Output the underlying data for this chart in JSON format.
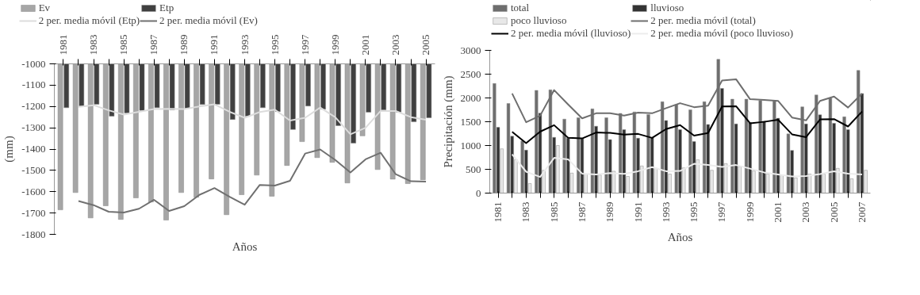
{
  "chart_data": [
    {
      "type": "bar",
      "xlabel": "Años",
      "ylabel": "(mm)",
      "legend": "top",
      "grid": false,
      "categories": [
        "1981",
        null,
        "1983",
        null,
        "1985",
        null,
        "1987",
        null,
        "1989",
        null,
        "1991",
        null,
        "1993",
        null,
        "1995",
        null,
        "1997",
        null,
        "1999",
        null,
        "2001",
        null,
        "2003",
        null,
        "2005"
      ],
      "ylim": [
        -1800,
        -1000
      ],
      "yticks": [
        -1800,
        -1700,
        -1600,
        -1500,
        -1400,
        -1300,
        -1200,
        -1100,
        -1000
      ],
      "series": [
        {
          "name": "Ev",
          "color": "#a6a6a6",
          "values": [
            -1685,
            -1604,
            -1723,
            -1666,
            -1730,
            -1629,
            -1648,
            -1733,
            -1604,
            -1626,
            -1540,
            -1708,
            -1614,
            -1522,
            -1621,
            -1477,
            -1365,
            -1440,
            -1462,
            -1559,
            -1338,
            -1496,
            -1541,
            -1562,
            -1544
          ]
        },
        {
          "name": "Etp",
          "color": "#404040",
          "values": [
            -1206,
            -1198,
            -1190,
            -1246,
            -1231,
            -1219,
            -1206,
            -1216,
            -1209,
            -1191,
            -1190,
            -1261,
            -1246,
            -1206,
            -1224,
            -1308,
            -1198,
            -1213,
            -1290,
            -1372,
            -1227,
            -1216,
            -1227,
            -1272,
            -1253
          ]
        },
        {
          "name": "2 per. media móvil (Etp)",
          "type": "line",
          "color": "#dcdcdc",
          "values": [
            null,
            -1202,
            -1194,
            -1218,
            -1238,
            -1225,
            -1212,
            -1211,
            -1212,
            -1200,
            -1190,
            -1225,
            -1253,
            -1226,
            -1215,
            -1266,
            -1253,
            -1205,
            -1251,
            -1331,
            -1300,
            -1221,
            -1221,
            -1250,
            -1262
          ]
        },
        {
          "name": "2 per. media móvil (Ev)",
          "type": "line",
          "color": "#707070",
          "values": [
            null,
            -1644,
            -1663,
            -1694,
            -1698,
            -1680,
            -1638,
            -1690,
            -1668,
            -1615,
            -1583,
            -1624,
            -1661,
            -1568,
            -1571,
            -1549,
            -1421,
            -1402,
            -1451,
            -1510,
            -1448,
            -1417,
            -1518,
            -1551,
            -1553
          ]
        }
      ]
    },
    {
      "type": "bar",
      "xlabel": "Años",
      "ylabel": "Precipitación (mm)",
      "legend": "top",
      "grid": false,
      "categories": [
        "1981",
        null,
        "1983",
        null,
        "1985",
        null,
        "1987",
        null,
        "1989",
        null,
        "1991",
        null,
        "1993",
        null,
        "1995",
        null,
        "1997",
        null,
        "1999",
        null,
        "2001",
        null,
        "2003",
        null,
        "2005",
        null,
        "2007"
      ],
      "ylim": [
        0,
        3000
      ],
      "yticks": [
        0,
        500,
        1000,
        1500,
        2000,
        2500,
        3000
      ],
      "series": [
        {
          "name": "total",
          "color": "#6e6e6e",
          "values": [
            2303,
            1884,
            1095,
            2159,
            2171,
            1555,
            1585,
            1770,
            1585,
            1675,
            1705,
            1651,
            1920,
            1860,
            1752,
            1920,
            2811,
            1974,
            1974,
            1944,
            1932,
            1244,
            1812,
            2063,
            1992,
            1603,
            2578
          ]
        },
        {
          "name": "lluvioso",
          "color": "#333333",
          "values": [
            1382,
            1196,
            903,
            1681,
            1172,
            1154,
            1142,
            1406,
            1124,
            1334,
            1154,
            1166,
            1525,
            1334,
            1083,
            1442,
            2201,
            1453,
            1483,
            1513,
            1573,
            897,
            1453,
            1645,
            1465,
            1334,
            2093
          ]
        },
        {
          "name": "poco lluvioso",
          "color": "#e8e8e8",
          "values": [
            930,
            700,
            200,
            480,
            1000,
            420,
            400,
            380,
            460,
            350,
            570,
            520,
            400,
            530,
            700,
            480,
            620,
            560,
            470,
            400,
            380,
            320,
            400,
            400,
            520,
            300,
            480
          ]
        },
        {
          "name": "2 per. media móvil (total)",
          "type": "line",
          "color": "#6e6e6e",
          "values": [
            null,
            2094,
            1489,
            1627,
            2165,
            1863,
            1570,
            1678,
            1678,
            1630,
            1690,
            1678,
            1786,
            1890,
            1806,
            1836,
            2366,
            2393,
            1974,
            1959,
            1938,
            1588,
            1528,
            1938,
            2028,
            1798,
            2091
          ]
        },
        {
          "name": "2 per. media móvil (lluvioso)",
          "type": "line",
          "color": "#000000",
          "values": [
            null,
            1289,
            1050,
            1292,
            1427,
            1163,
            1148,
            1274,
            1265,
            1229,
            1244,
            1160,
            1346,
            1430,
            1209,
            1263,
            1822,
            1827,
            1468,
            1498,
            1543,
            1235,
            1175,
            1549,
            1555,
            1400,
            1714
          ]
        },
        {
          "name": "2 per. media móvil (poco lluvioso)",
          "type": "line",
          "color": "#ececec",
          "values": [
            null,
            815,
            450,
            340,
            740,
            710,
            410,
            390,
            420,
            405,
            460,
            545,
            460,
            465,
            615,
            590,
            550,
            590,
            515,
            435,
            390,
            350,
            360,
            400,
            460,
            410,
            390
          ]
        }
      ]
    }
  ]
}
